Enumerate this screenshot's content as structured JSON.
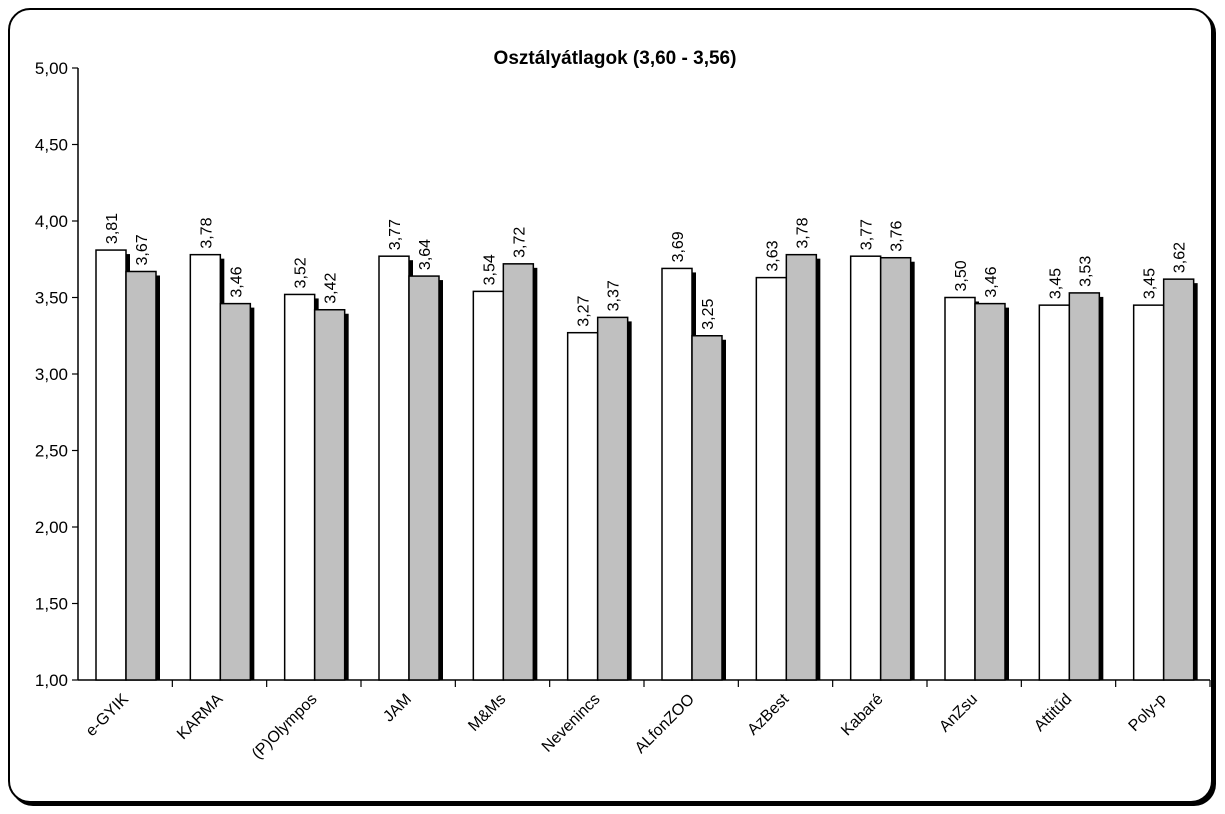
{
  "chart_data": {
    "type": "bar",
    "title": "Osztályátlagok (3,60 - 3,56)",
    "xlabel": "",
    "ylabel": "",
    "ylim": [
      1.0,
      5.0
    ],
    "ytick_labels": [
      "1,00",
      "1,50",
      "2,00",
      "2,50",
      "3,00",
      "3,50",
      "4,00",
      "4,50",
      "5,00"
    ],
    "grid": false,
    "legend": "none",
    "categories": [
      "e-GYIK",
      "KARMA",
      "(P)Olympos",
      "JAM",
      "M&Ms",
      "Nevenincs",
      "ALfonZOO",
      "AzBest",
      "Kabaré",
      "AnZsu",
      "Attitűd",
      "Poly-p"
    ],
    "series": [
      {
        "values": [
          3.81,
          3.78,
          3.52,
          3.77,
          3.54,
          3.27,
          3.69,
          3.63,
          3.77,
          3.5,
          3.45,
          3.45
        ],
        "value_labels": [
          "3,81",
          "3,78",
          "3,52",
          "3,77",
          "3,54",
          "3,27",
          "3,69",
          "3,63",
          "3,77",
          "3,50",
          "3,45",
          "3,45"
        ],
        "color": "#ffffff"
      },
      {
        "values": [
          3.67,
          3.46,
          3.42,
          3.64,
          3.72,
          3.37,
          3.25,
          3.78,
          3.76,
          3.46,
          3.53,
          3.62
        ],
        "value_labels": [
          "3,67",
          "3,46",
          "3,42",
          "3,64",
          "3,72",
          "3,37",
          "3,25",
          "3,78",
          "3,76",
          "3,46",
          "3,53",
          "3,62"
        ],
        "color": "#c0c0c0"
      }
    ]
  }
}
